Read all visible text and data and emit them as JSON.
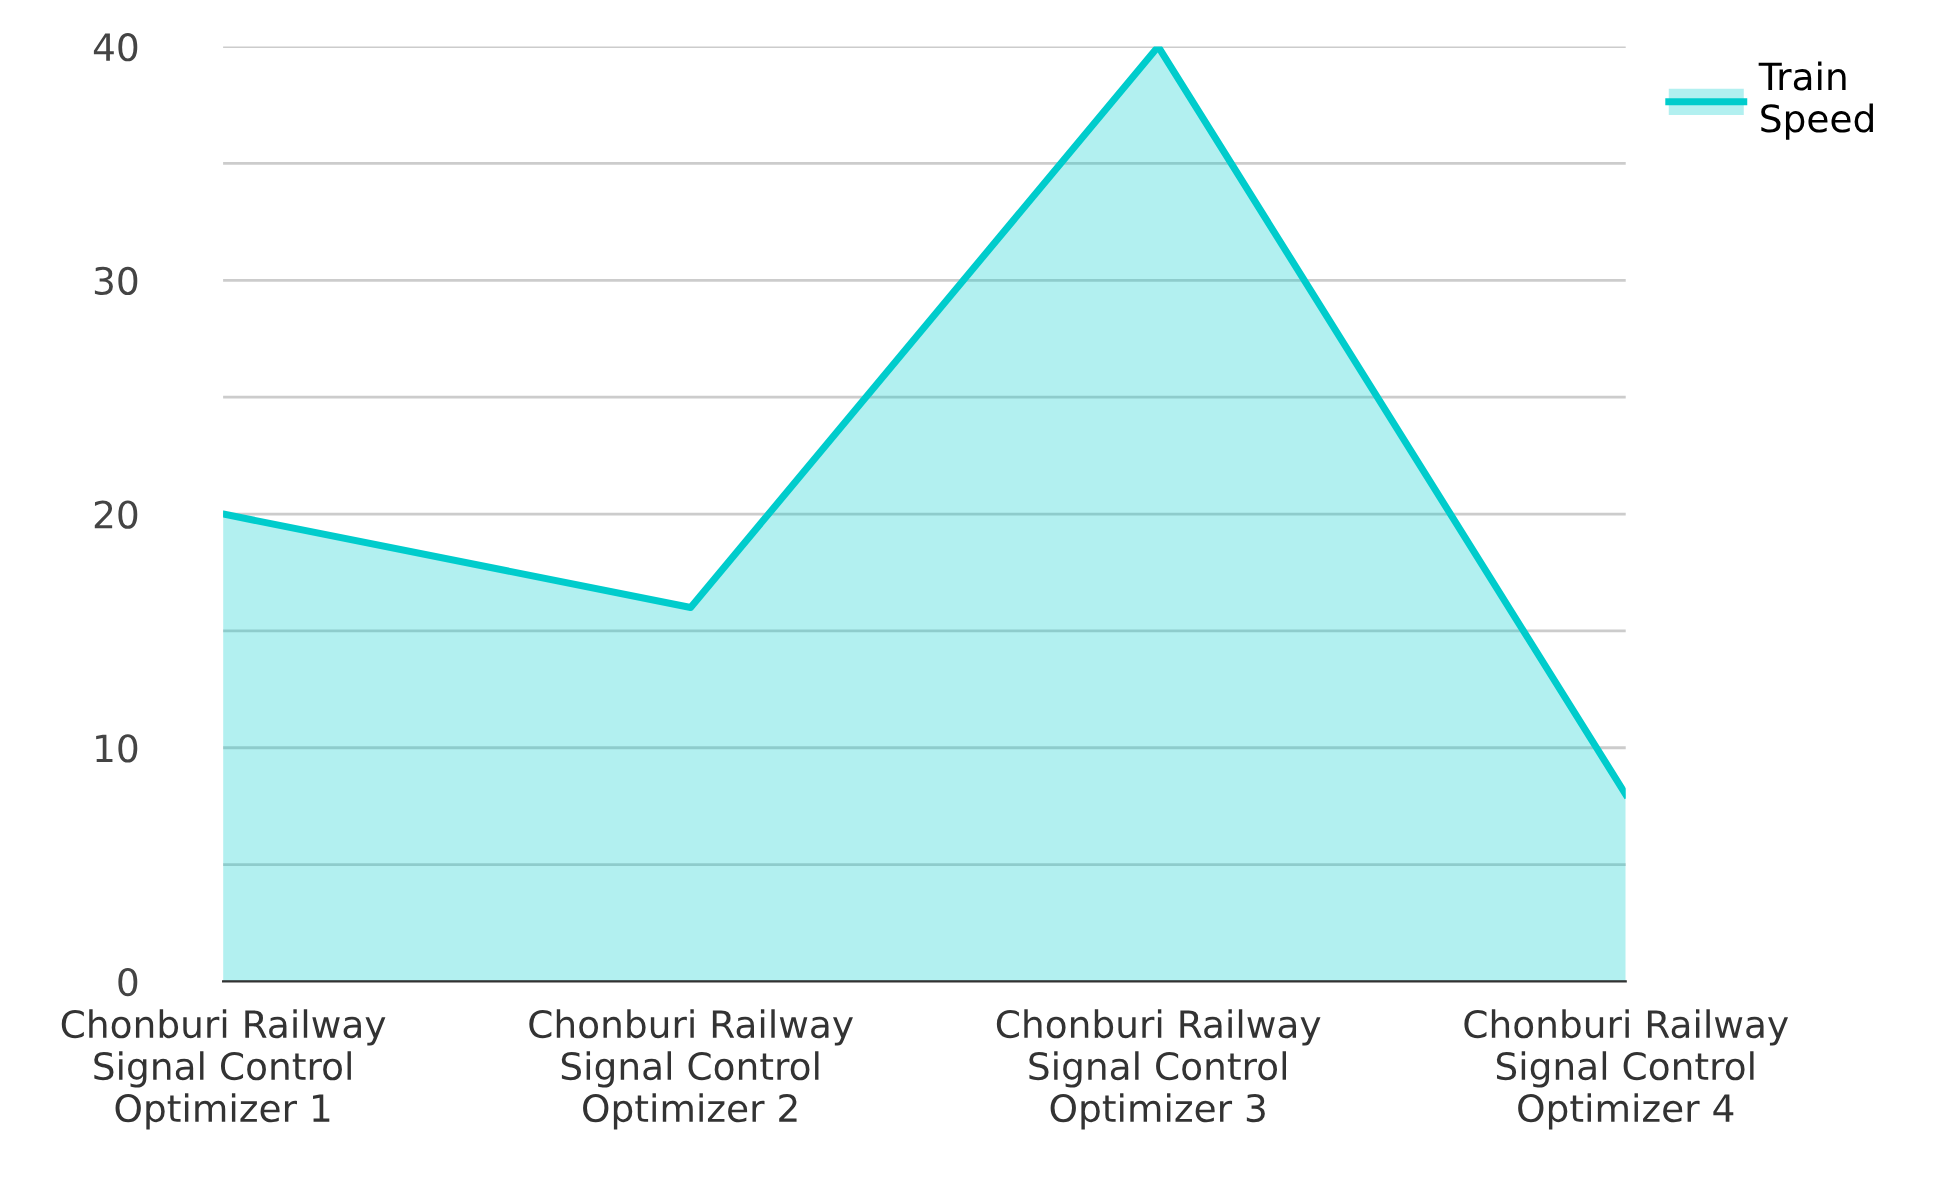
{
  "chart_data": {
    "type": "area",
    "categories": [
      "Chonburi Railway Signal Control Optimizer 1",
      "Chonburi Railway Signal Control Optimizer 2",
      "Chonburi Railway Signal Control Optimizer 3",
      "Chonburi Railway Signal Control Optimizer 4"
    ],
    "series": [
      {
        "name": "Train Speed",
        "color": "#00cccc",
        "values": [
          20,
          16,
          40,
          8
        ]
      }
    ],
    "ylim": [
      0,
      40
    ],
    "yticks": [
      0,
      {
        "value": 5,
        "label": null
      },
      10,
      {
        "value": 15,
        "label": null
      },
      20,
      {
        "value": 25,
        "label": null
      },
      30,
      {
        "value": 35,
        "label": null
      },
      40
    ],
    "grid": "y",
    "legend": "top right",
    "marker": "none",
    "line_style": "solid"
  }
}
